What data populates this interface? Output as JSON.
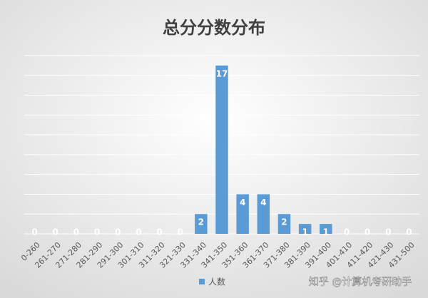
{
  "chart_data": {
    "type": "bar",
    "title": "总分分数分布",
    "categories": [
      "0-260",
      "261-270",
      "271-280",
      "281-290",
      "291-300",
      "301-310",
      "311-320",
      "321-330",
      "331-340",
      "341-350",
      "351-360",
      "361-370",
      "371-380",
      "381-390",
      "391-400",
      "401-410",
      "411-420",
      "421-430",
      "431-500"
    ],
    "series": [
      {
        "name": "人数",
        "color": "#5b9bd5",
        "values": [
          0,
          0,
          0,
          0,
          0,
          0,
          0,
          0,
          2,
          17,
          4,
          4,
          2,
          1,
          1,
          0,
          0,
          0,
          0
        ]
      }
    ],
    "ylim": [
      0,
      18
    ],
    "yticks": [
      0,
      2,
      4,
      6,
      8,
      10,
      12,
      14,
      16,
      18
    ],
    "grid": true,
    "legend": "bottom",
    "watermark": "知乎 @计算机考研助手"
  }
}
